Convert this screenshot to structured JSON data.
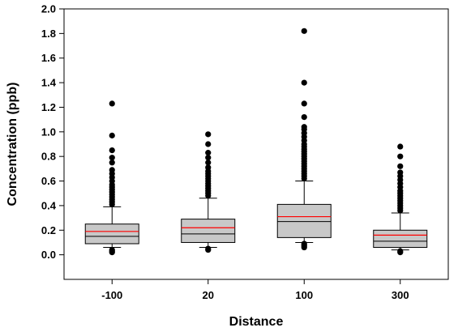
{
  "chart_data": {
    "type": "box",
    "title": "",
    "xlabel": "Distance",
    "ylabel": "Concentration (ppb)",
    "ylim": [
      -0.2,
      2.0
    ],
    "yticks": [
      "0.0",
      "0.2",
      "0.4",
      "0.6",
      "0.8",
      "1.0",
      "1.2",
      "1.4",
      "1.6",
      "1.8",
      "2.0"
    ],
    "categories": [
      "-100",
      "20",
      "100",
      "300"
    ],
    "grid": false,
    "legend": "none",
    "colors": {
      "box_fill": "#c8c8c8",
      "median": "#000000",
      "mean": "#ff0000",
      "outlier": "#000000"
    },
    "boxes": [
      {
        "category": "-100",
        "whisker_low": 0.06,
        "q1": 0.09,
        "median": 0.15,
        "mean": 0.19,
        "q3": 0.25,
        "whisker_high": 0.39,
        "outliers": [
          0.02,
          0.03,
          0.04,
          0.41,
          0.43,
          0.45,
          0.47,
          0.49,
          0.51,
          0.53,
          0.55,
          0.57,
          0.6,
          0.63,
          0.66,
          0.69,
          0.75,
          0.79,
          0.85,
          0.97,
          1.23
        ]
      },
      {
        "category": "20",
        "whisker_low": 0.06,
        "q1": 0.1,
        "median": 0.17,
        "mean": 0.22,
        "q3": 0.29,
        "whisker_high": 0.46,
        "outliers": [
          0.04,
          0.05,
          0.48,
          0.5,
          0.52,
          0.54,
          0.56,
          0.58,
          0.6,
          0.62,
          0.64,
          0.66,
          0.68,
          0.71,
          0.75,
          0.79,
          0.83,
          0.9,
          0.98
        ]
      },
      {
        "category": "100",
        "whisker_low": 0.1,
        "q1": 0.14,
        "median": 0.27,
        "mean": 0.31,
        "q3": 0.41,
        "whisker_high": 0.6,
        "outliers": [
          0.06,
          0.07,
          0.08,
          0.09,
          0.62,
          0.64,
          0.66,
          0.68,
          0.7,
          0.72,
          0.74,
          0.76,
          0.78,
          0.8,
          0.82,
          0.84,
          0.86,
          0.88,
          0.9,
          0.93,
          0.96,
          0.99,
          1.02,
          1.04,
          1.12,
          1.23,
          1.4,
          1.82
        ]
      },
      {
        "category": "300",
        "whisker_low": 0.04,
        "q1": 0.06,
        "median": 0.11,
        "mean": 0.16,
        "q3": 0.2,
        "whisker_high": 0.34,
        "outliers": [
          0.02,
          0.03,
          0.36,
          0.38,
          0.4,
          0.42,
          0.44,
          0.46,
          0.48,
          0.5,
          0.52,
          0.55,
          0.58,
          0.61,
          0.64,
          0.67,
          0.72,
          0.8,
          0.88
        ]
      }
    ]
  }
}
